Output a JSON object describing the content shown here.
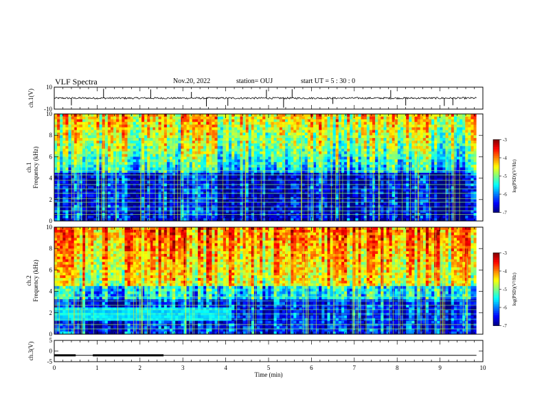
{
  "header": {
    "title": "VLF Spectra",
    "date": "Nov.20, 2022",
    "station": "station= OUJ",
    "start": "start  UT =  5 : 30 : 0"
  },
  "chart_data": [
    {
      "type": "line",
      "panel": "ch1-waveform",
      "ylabel": "ch.1(V)",
      "ylim": [
        -10,
        10
      ],
      "yticks": [
        -10,
        10
      ],
      "xlim": [
        0,
        10
      ],
      "baseline": 0,
      "noise_amplitude": 0.8,
      "spike_times": [
        0.4,
        1.15,
        2.25,
        3.2,
        3.55,
        4.05,
        4.95,
        5.35,
        5.55,
        6.5,
        7.85,
        8.2,
        9.1,
        9.3
      ]
    },
    {
      "type": "heatmap",
      "panel": "ch1-spectrogram",
      "ylabel": "Frequency (kHz)",
      "channel_label": "ch.1",
      "ylim": [
        0,
        10
      ],
      "yticks": [
        0,
        2,
        4,
        6,
        8,
        10
      ],
      "xlim": [
        0,
        9.85
      ],
      "colorbar": {
        "label": "log(PSD)(V²/Hz)",
        "range": [
          -7,
          -3
        ],
        "ticks": [
          "-3",
          "-4",
          "-5",
          "-6",
          "-7"
        ]
      }
    },
    {
      "type": "heatmap",
      "panel": "ch2-spectrogram",
      "ylabel": "Frequency (kHz)",
      "channel_label": "ch.2",
      "ylim": [
        0,
        10
      ],
      "yticks": [
        0,
        2,
        4,
        6,
        8,
        10
      ],
      "xlim": [
        0,
        9.85
      ],
      "colorbar": {
        "label": "log(PSD)(V²/Hz)",
        "range": [
          -7,
          -3
        ],
        "ticks": [
          "-3",
          "-4",
          "-5",
          "-6",
          "-7"
        ]
      }
    },
    {
      "type": "line",
      "panel": "ch3-signal",
      "ylabel": "ch.3(V)",
      "ylim": [
        -5,
        5
      ],
      "yticks": [
        -5,
        0,
        5
      ],
      "xlabel": "Time  (min)",
      "xlim": [
        0,
        10
      ],
      "xticks": [
        0,
        1,
        2,
        3,
        4,
        5,
        6,
        7,
        8,
        9,
        10
      ],
      "level": -2,
      "thick_segments": [
        [
          0,
          0.5
        ],
        [
          0.9,
          2.55
        ]
      ],
      "trace_end": 9.85
    }
  ]
}
